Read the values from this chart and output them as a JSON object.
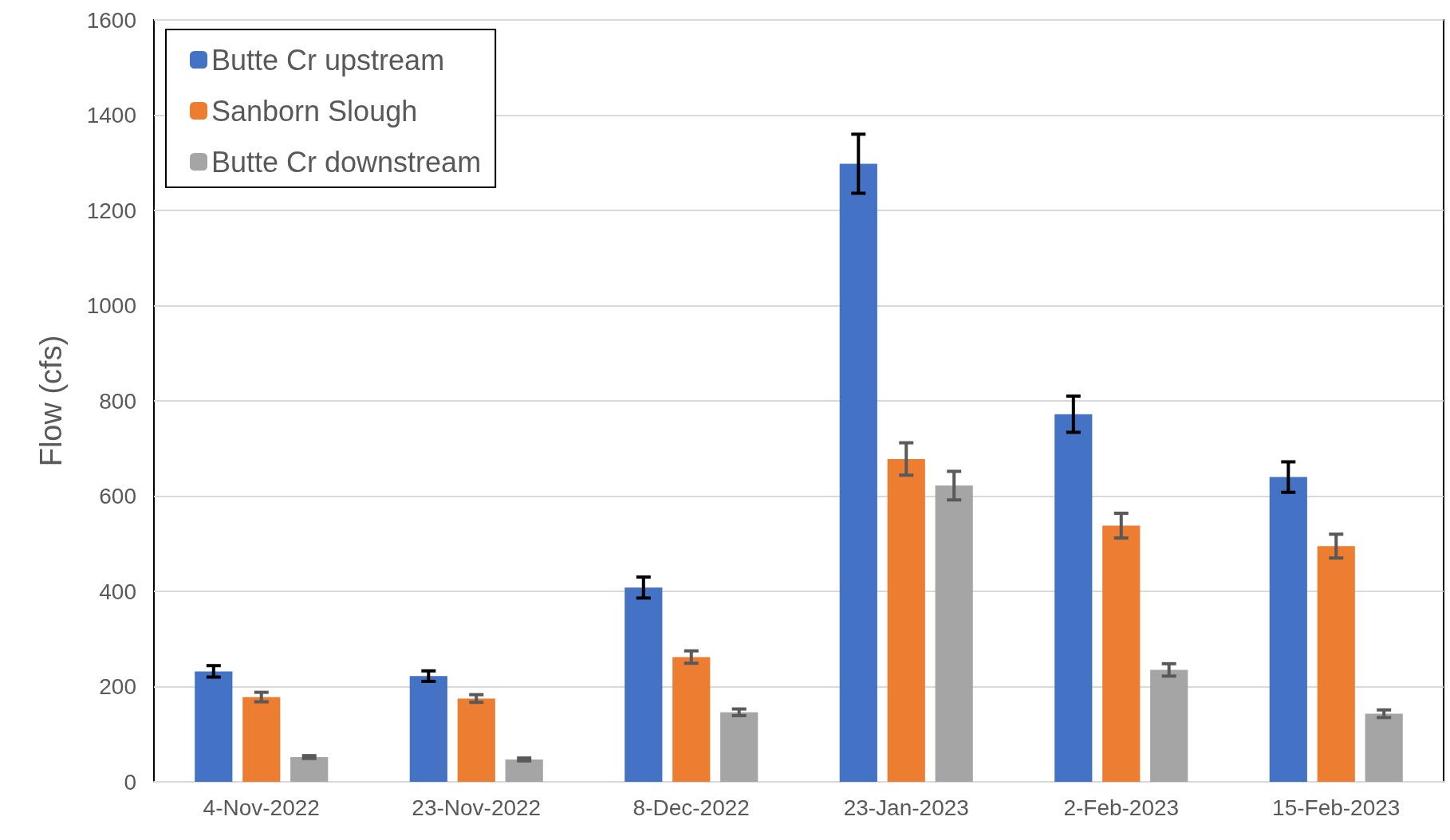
{
  "chart_data": {
    "type": "bar",
    "ylabel": "Flow (cfs)",
    "categories": [
      "4-Nov-2022",
      "23-Nov-2022",
      "8-Dec-2022",
      "23-Jan-2023",
      "2-Feb-2023",
      "15-Feb-2023"
    ],
    "series": [
      {
        "name": "Butte Cr upstream",
        "color": "#4472c4",
        "values": [
          232,
          222,
          408,
          1298,
          772,
          640
        ],
        "errors": [
          12,
          11,
          22,
          62,
          38,
          32
        ]
      },
      {
        "name": "Sanborn Slough",
        "color": "#ed7d31",
        "values": [
          178,
          175,
          262,
          678,
          538,
          495
        ],
        "errors": [
          10,
          8,
          13,
          34,
          26,
          25
        ]
      },
      {
        "name": "Butte Cr downstream",
        "color": "#a5a5a5",
        "values": [
          52,
          47,
          146,
          622,
          235,
          143
        ],
        "errors": [
          3,
          3,
          7,
          30,
          13,
          8
        ]
      }
    ],
    "ylim": [
      0,
      1600
    ],
    "yticks": [
      0,
      200,
      400,
      600,
      800,
      1000,
      1200,
      1400,
      1600
    ],
    "grid": "y",
    "legend": "top left"
  }
}
